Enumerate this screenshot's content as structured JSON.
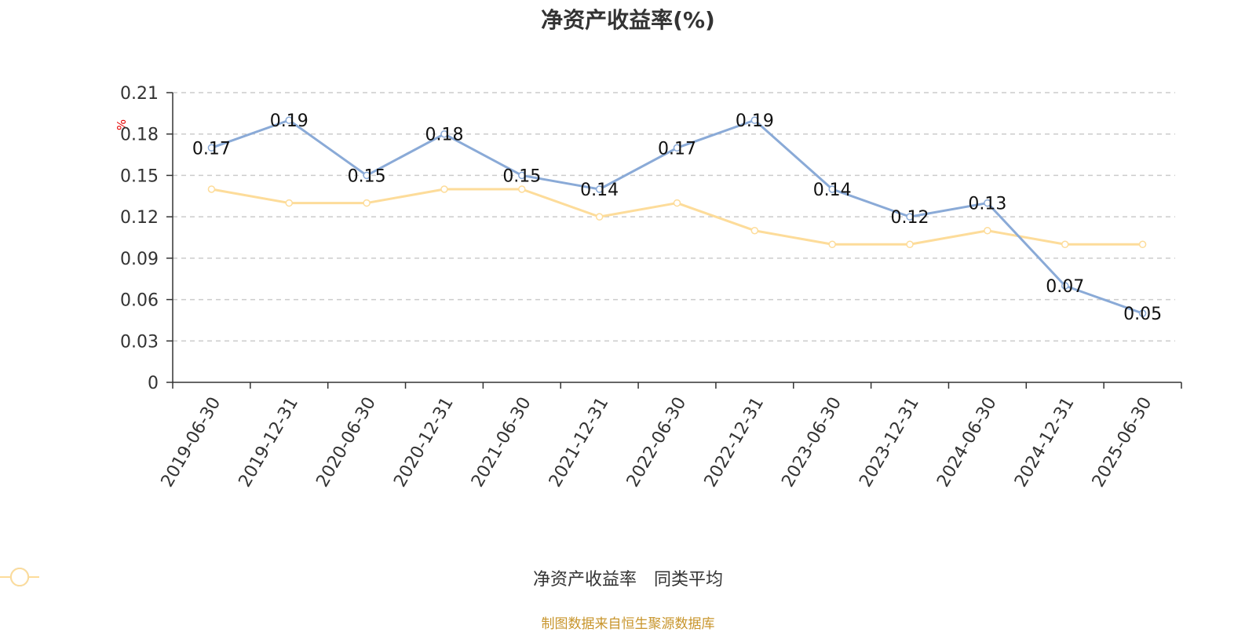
{
  "title": "净资产收益率(%)",
  "unit_label": "%",
  "source": "制图数据来自恒生聚源数据库",
  "colors": {
    "roe": "#8aaad7",
    "avg": "#fddc9a",
    "axis": "#333333",
    "grid": "#cccccc",
    "unit": "#e60000",
    "source": "#c8952c"
  },
  "legend": [
    {
      "name": "净资产收益率",
      "color": "#8aaad7"
    },
    {
      "name": "同类平均",
      "color": "#fddc9a"
    }
  ],
  "chart_data": {
    "type": "line",
    "title": "净资产收益率(%)",
    "ylabel": "%",
    "ylim": [
      0,
      0.21
    ],
    "yticks": [
      0,
      0.03,
      0.06,
      0.09,
      0.12,
      0.15,
      0.18,
      0.21
    ],
    "grid": true,
    "legend_position": "bottom",
    "x": [
      "2019-06-30",
      "2019-12-31",
      "2020-06-30",
      "2020-12-31",
      "2021-06-30",
      "2021-12-31",
      "2022-06-30",
      "2022-12-31",
      "2023-06-30",
      "2023-12-31",
      "2024-06-30",
      "2024-12-31",
      "2025-06-30"
    ],
    "series": [
      {
        "name": "净资产收益率",
        "values": [
          0.17,
          0.19,
          0.15,
          0.18,
          0.15,
          0.14,
          0.17,
          0.19,
          0.14,
          0.12,
          0.13,
          0.07,
          0.05
        ],
        "labels": true
      },
      {
        "name": "同类平均",
        "values": [
          0.14,
          0.13,
          0.13,
          0.14,
          0.14,
          0.12,
          0.13,
          0.11,
          0.1,
          0.1,
          0.11,
          0.1,
          0.1
        ],
        "labels": false
      }
    ]
  }
}
